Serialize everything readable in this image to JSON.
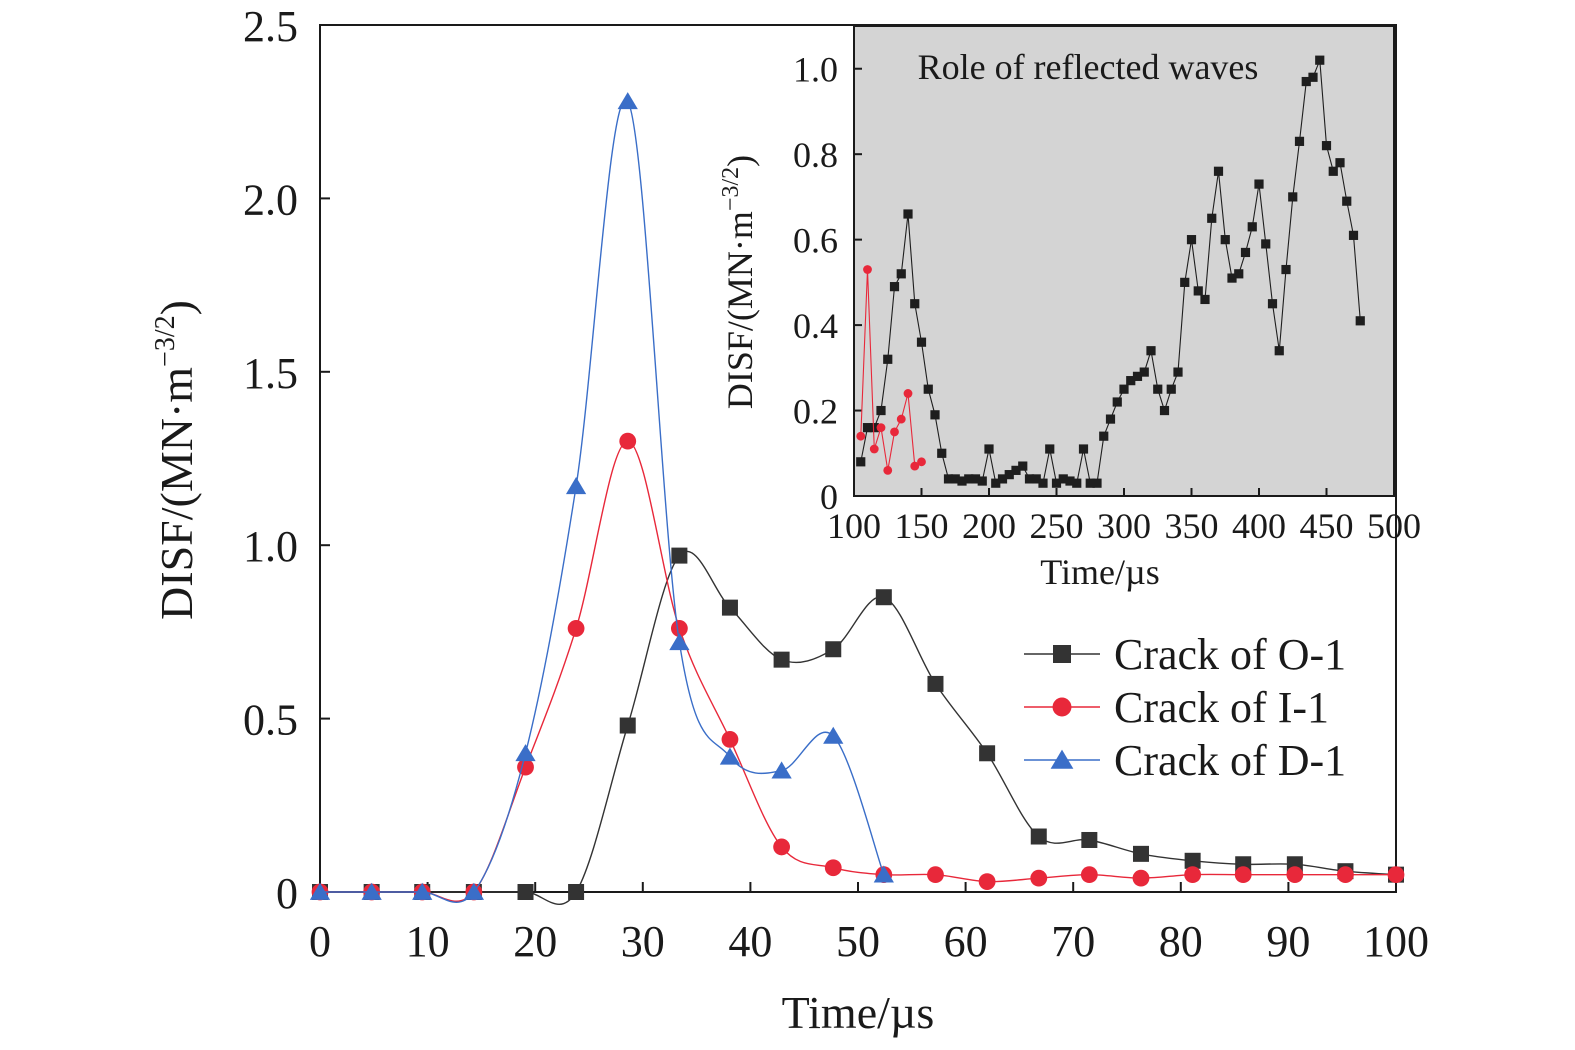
{
  "chart_data": [
    {
      "type": "line",
      "xlabel": "Time/µs",
      "ylabel": "DISF/(MN·m",
      "ylabel_sup": "−3/2",
      "ylabel_close": ")",
      "xlim": [
        0,
        100
      ],
      "ylim": [
        0,
        2.5
      ],
      "xticks": [
        0,
        10,
        20,
        30,
        40,
        50,
        60,
        70,
        80,
        90,
        100
      ],
      "xtick_labels": [
        "0",
        "10",
        "20",
        "30",
        "40",
        "50",
        "60",
        "70",
        "80",
        "90",
        "100"
      ],
      "yticks": [
        0,
        0.5,
        1.0,
        1.5,
        2.0,
        2.5
      ],
      "ytick_labels": [
        "0",
        "0.5",
        "1.0",
        "1.5",
        "2.0",
        "2.5"
      ],
      "legend_position": "center-right",
      "series": [
        {
          "name": "Crack of O-1",
          "marker": "square",
          "color": "#333333",
          "x": [
            0,
            4.8,
            9.5,
            14.3,
            19.1,
            23.8,
            28.6,
            33.4,
            38.1,
            42.9,
            47.7,
            52.4,
            57.2,
            62.0,
            66.8,
            71.5,
            76.3,
            81.1,
            85.8,
            90.6,
            95.3,
            100
          ],
          "y": [
            0,
            0,
            0,
            0,
            0,
            0,
            0.48,
            0.97,
            0.82,
            0.67,
            0.7,
            0.85,
            0.6,
            0.4,
            0.16,
            0.15,
            0.11,
            0.09,
            0.08,
            0.08,
            0.06,
            0.05
          ]
        },
        {
          "name": "Crack of I-1",
          "marker": "circle",
          "color": "#e8283a",
          "x": [
            0,
            4.8,
            9.5,
            14.3,
            19.1,
            23.8,
            28.6,
            33.4,
            38.1,
            42.9,
            47.7,
            52.4,
            57.2,
            62.0,
            66.8,
            71.5,
            76.3,
            81.1,
            85.8,
            90.6,
            95.3,
            100
          ],
          "y": [
            0,
            0,
            0,
            0,
            0.36,
            0.76,
            1.3,
            0.76,
            0.44,
            0.13,
            0.07,
            0.05,
            0.05,
            0.03,
            0.04,
            0.05,
            0.04,
            0.05,
            0.05,
            0.05,
            0.05,
            0.05
          ]
        },
        {
          "name": "Crack of D-1",
          "marker": "triangle",
          "color": "#3a6ec8",
          "x": [
            0,
            4.8,
            9.5,
            14.3,
            19.1,
            23.8,
            28.6,
            33.4,
            38.1,
            42.9,
            47.7,
            52.4
          ],
          "y": [
            0,
            0,
            0,
            0,
            0.4,
            1.17,
            2.28,
            0.72,
            0.39,
            0.35,
            0.45,
            0.05
          ]
        }
      ]
    },
    {
      "type": "line",
      "title": "Role of reflected waves",
      "xlabel": "Time/µs",
      "ylabel": "DISF/(MN·m",
      "ylabel_sup": "−3/2",
      "ylabel_close": ")",
      "xlim": [
        100,
        500
      ],
      "ylim": [
        0,
        1.1
      ],
      "xticks": [
        100,
        150,
        200,
        250,
        300,
        350,
        400,
        450,
        500
      ],
      "xtick_labels": [
        "100",
        "150",
        "200",
        "250",
        "300",
        "350",
        "400",
        "450",
        "500"
      ],
      "yticks": [
        0,
        0.2,
        0.4,
        0.6,
        0.8,
        1.0
      ],
      "ytick_labels": [
        "0",
        "0.2",
        "0.4",
        "0.6",
        "0.8",
        "1.0"
      ],
      "background": "#d4d4d4",
      "series": [
        {
          "marker": "square",
          "color": "#1e1e1e",
          "x": [
            105,
            110,
            115,
            120,
            125,
            130,
            135,
            140,
            145,
            150,
            155,
            160,
            165,
            170,
            175,
            180,
            185,
            190,
            195,
            200,
            205,
            210,
            215,
            220,
            225,
            230,
            235,
            240,
            245,
            250,
            255,
            260,
            265,
            270,
            275,
            280,
            285,
            290,
            295,
            300,
            305,
            310,
            315,
            320,
            325,
            330,
            335,
            340,
            345,
            350,
            355,
            360,
            365,
            370,
            375,
            380,
            385,
            390,
            395,
            400,
            405,
            410,
            415,
            420,
            425,
            430,
            435,
            440,
            445,
            450,
            455,
            460,
            465,
            470,
            475
          ],
          "y": [
            0.08,
            0.16,
            0.16,
            0.2,
            0.32,
            0.49,
            0.52,
            0.66,
            0.45,
            0.36,
            0.25,
            0.19,
            0.1,
            0.04,
            0.04,
            0.035,
            0.04,
            0.04,
            0.035,
            0.11,
            0.03,
            0.04,
            0.05,
            0.06,
            0.07,
            0.04,
            0.04,
            0.03,
            0.11,
            0.03,
            0.04,
            0.035,
            0.03,
            0.11,
            0.03,
            0.03,
            0.14,
            0.18,
            0.22,
            0.25,
            0.27,
            0.28,
            0.29,
            0.34,
            0.25,
            0.2,
            0.25,
            0.29,
            0.5,
            0.6,
            0.48,
            0.46,
            0.65,
            0.76,
            0.6,
            0.51,
            0.52,
            0.57,
            0.63,
            0.73,
            0.59,
            0.45,
            0.34,
            0.53,
            0.7,
            0.83,
            0.97,
            0.98,
            1.02,
            0.82,
            0.76,
            0.78,
            0.69,
            0.61,
            0.41
          ]
        },
        {
          "marker": "circle",
          "color": "#e8283a",
          "x": [
            105,
            110,
            115,
            120,
            125,
            130,
            135,
            140,
            145,
            150
          ],
          "y": [
            0.14,
            0.53,
            0.11,
            0.16,
            0.06,
            0.15,
            0.18,
            0.24,
            0.07,
            0.08
          ]
        }
      ]
    }
  ]
}
